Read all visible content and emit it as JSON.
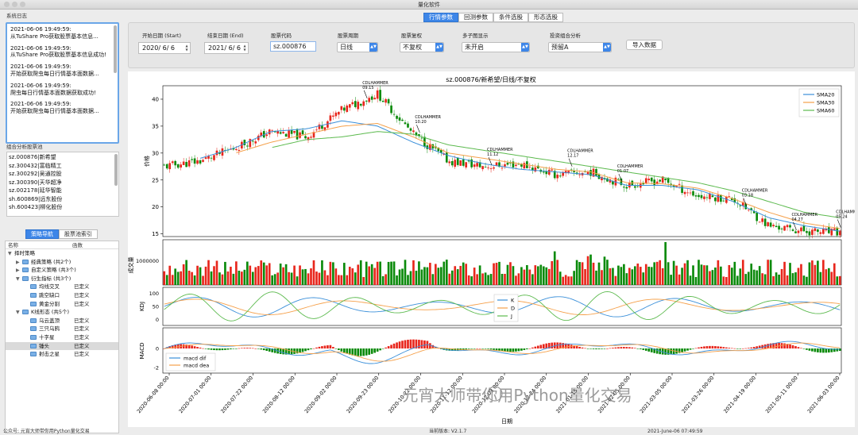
{
  "window": {
    "title": "量化软件"
  },
  "left": {
    "log_label": "系统日志",
    "logs": [
      {
        "time": "2021-06-06 19:49:59:",
        "msg": "从TuShare Pro获取股票基本信息..."
      },
      {
        "time": "2021-06-06 19:49:59:",
        "msg": "从TuShare Pro获取股票基本信息成功!"
      },
      {
        "time": "2021-06-06 19:49:59:",
        "msg": "开始获取爬虫每日行情基本面数据..."
      },
      {
        "time": "2021-06-06 19:49:59:",
        "msg": "爬虫每日行情基本面数据获取成功!"
      },
      {
        "time": "2021-06-06 19:49:59:",
        "msg": "开始获取爬虫每日行情基本面数据..."
      }
    ],
    "pool_label": "组合分析股票池",
    "pool": [
      "sz.000876|新希望",
      "sz.300432|富临精工",
      "sz.300292|吴通控股",
      "sz.300390|天华超净",
      "sz.002178|延华智能",
      "sh.600869|远东股份",
      "sh.600423|柳化股份"
    ],
    "tabs": [
      "策略导航",
      "股票池索引"
    ],
    "tree_headers": [
      "名称",
      "函数"
    ],
    "tree": [
      {
        "label": "择时策略",
        "func": "",
        "level": 0,
        "arrow": "▼",
        "folder": false
      },
      {
        "label": "经典策略 (共2个)",
        "func": "",
        "level": 1,
        "arrow": "▶",
        "folder": true
      },
      {
        "label": "自定义策略 (共3个)",
        "func": "",
        "level": 1,
        "arrow": "▶",
        "folder": true
      },
      {
        "label": "衍生指标 (共3个)",
        "func": "",
        "level": 1,
        "arrow": "▼",
        "folder": true
      },
      {
        "label": "均线交叉",
        "func": "已定义",
        "level": 2,
        "arrow": "",
        "folder": true
      },
      {
        "label": "跳空缺口",
        "func": "已定义",
        "level": 2,
        "arrow": "",
        "folder": true
      },
      {
        "label": "黄金分割",
        "func": "已定义",
        "level": 2,
        "arrow": "",
        "folder": true
      },
      {
        "label": "K线形态 (共5个)",
        "func": "",
        "level": 1,
        "arrow": "▼",
        "folder": true
      },
      {
        "label": "乌云盖顶",
        "func": "已定义",
        "level": 2,
        "arrow": "",
        "folder": true
      },
      {
        "label": "三只乌鸦",
        "func": "已定义",
        "level": 2,
        "arrow": "",
        "folder": true
      },
      {
        "label": "十字星",
        "func": "已定义",
        "level": 2,
        "arrow": "",
        "folder": true
      },
      {
        "label": "锤头",
        "func": "已定义",
        "level": 2,
        "arrow": "",
        "folder": true,
        "selected": true
      },
      {
        "label": "射击之星",
        "func": "已定义",
        "level": 2,
        "arrow": "",
        "folder": true
      }
    ]
  },
  "top_tabs": [
    "行情参数",
    "回测参数",
    "条件选股",
    "形态选股"
  ],
  "controls": {
    "start_label": "开始日期 (Start)",
    "start_value": "2020/ 6/ 6",
    "end_label": "结束日期 (End)",
    "end_value": "2021/ 6/ 6",
    "code_label": "股票代码",
    "code_value": "sz.000876",
    "period_label": "股票周期",
    "period_value": "日线",
    "adjust_label": "股票复权",
    "adjust_value": "不复权",
    "subplot_label": "多子图显示",
    "subplot_value": "未开启",
    "portfolio_label": "投资组合分析",
    "portfolio_value": "预留A",
    "import_label": "导入数据"
  },
  "status": {
    "left": "公众号: 元宵大师带你用Python量化交易",
    "mid": "当前版本: V2.1.7",
    "right": "2021-June-06 07:49:59"
  },
  "watermark": "元宵大师带你用Python量化交易",
  "colors": {
    "up": "#e8261c",
    "down": "#0a8a0a",
    "sma20": "#3a8fd9",
    "sma30": "#f5a04a",
    "sma60": "#5cba4e",
    "accent": "#3d86e8"
  },
  "chart_data": {
    "type": "line",
    "title": "sz.000876/新希望/日线/不复权",
    "xlabel": "日期",
    "date_ticks": [
      "2020-06-08 00:00",
      "2020-07-01 00:00",
      "2020-07-22 00:00",
      "2020-08-12 00:00",
      "2020-09-02 00:00",
      "2020-09-23 00:00",
      "2020-10-22 00:00",
      "2020-11-12 00:00",
      "2020-12-03 00:00",
      "2020-12-24 00:00",
      "2021-01-15 00:00",
      "2021-02-05 00:00",
      "2021-03-05 00:00",
      "2021-03-26 00:00",
      "2021-04-19 00:00",
      "2021-05-11 00:00",
      "2021-06-03 00:00"
    ],
    "price": {
      "ylabel": "价格",
      "ylim": [
        14.5,
        42.5
      ],
      "yticks": [
        15,
        20,
        25,
        30,
        35,
        40
      ],
      "close_anchors": [
        27.5,
        28.5,
        31,
        34,
        33,
        38,
        41,
        33.5,
        28.5,
        27.5,
        28,
        26,
        26.5,
        24,
        25,
        22,
        21.5,
        16.5,
        15.5,
        15.2
      ],
      "legend": [
        "SMA20",
        "SMA30",
        "SMA60"
      ],
      "sma20_anchors": [
        null,
        29,
        31,
        34,
        34.5,
        36,
        35,
        32,
        29.5,
        28,
        27,
        26.5,
        26,
        24,
        24,
        23.2,
        21,
        18,
        16.5,
        15.5
      ],
      "sma30_anchors": [
        null,
        null,
        30,
        32,
        33.5,
        35,
        35.5,
        33,
        30,
        29,
        28,
        27,
        26.5,
        24.5,
        24.3,
        23.5,
        21.5,
        19,
        17,
        16
      ],
      "sma60_anchors": [
        null,
        null,
        null,
        31,
        32.5,
        33,
        34,
        33.5,
        31.5,
        30.5,
        29.5,
        28.5,
        27.5,
        26.5,
        25.5,
        24.5,
        23,
        21,
        19,
        18
      ],
      "annotations": [
        {
          "label": "CDLHAMMER",
          "date": "09.15"
        },
        {
          "label": "CDLHAMMER",
          "date": "10.20"
        },
        {
          "label": "CDLHAMMER",
          "date": "11.12"
        },
        {
          "label": "CDLHAMMER",
          "date": "12.17"
        },
        {
          "label": "CDLHAMMER",
          "date": "01.07"
        },
        {
          "label": "CDLHAMMER",
          "date": "03.18"
        },
        {
          "label": "CDLHAMMER",
          "date": "04.27"
        },
        {
          "label": "CDLHAMMER",
          "date": "05.24"
        }
      ]
    },
    "volume": {
      "ylabel": "成交量",
      "ytick": "1000000"
    },
    "kdj": {
      "ylabel": "KDJ",
      "yticks": [
        0,
        50,
        100
      ],
      "legend": [
        "K",
        "D",
        "J"
      ]
    },
    "macd": {
      "ylabel": "MACD",
      "yticks": [
        -2,
        0
      ],
      "legend": [
        "macd dif",
        "macd dea"
      ]
    }
  }
}
